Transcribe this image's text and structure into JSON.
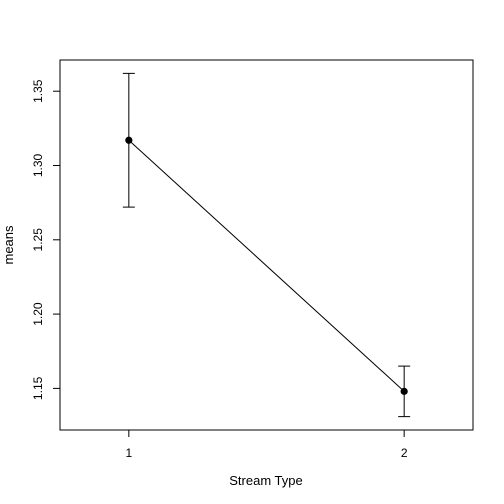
{
  "chart_data": {
    "type": "line",
    "title": "",
    "xlabel": "Stream Type",
    "ylabel": "means",
    "x": [
      1,
      2
    ],
    "x_tick_labels": [
      "1",
      "2"
    ],
    "xlim": [
      0.75,
      2.25
    ],
    "ylim": [
      1.122,
      1.371
    ],
    "y_ticks": [
      1.15,
      1.2,
      1.25,
      1.3,
      1.35
    ],
    "y_tick_labels": [
      "1.15",
      "1.20",
      "1.25",
      "1.30",
      "1.35"
    ],
    "series": [
      {
        "values": [
          1.317,
          1.148
        ],
        "error_lower": [
          1.272,
          1.131
        ],
        "error_upper": [
          1.362,
          1.165
        ]
      }
    ],
    "grid": false,
    "legend": "none"
  }
}
